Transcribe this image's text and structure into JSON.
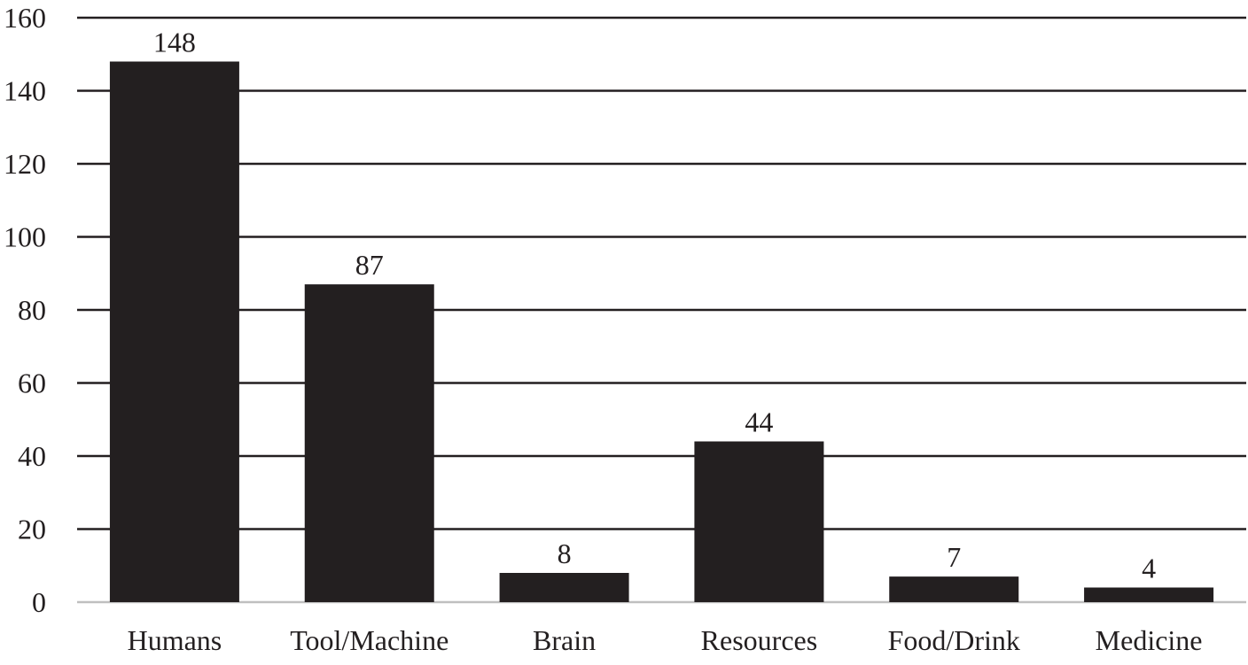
{
  "chart_data": {
    "type": "bar",
    "categories": [
      "Humans",
      "Tool/Machine",
      "Brain",
      "Resources",
      "Food/Drink",
      "Medicine"
    ],
    "values": [
      148,
      87,
      8,
      44,
      7,
      4
    ],
    "data_labels": [
      "148",
      "87",
      "8",
      "44",
      "7",
      "4"
    ],
    "title": "",
    "xlabel": "",
    "ylabel": "",
    "ylim": [
      0,
      160
    ],
    "y_ticks": [
      0,
      20,
      40,
      60,
      80,
      100,
      120,
      140,
      160
    ],
    "y_tick_labels": [
      "0",
      "20",
      "40",
      "60",
      "80",
      "100",
      "120",
      "140",
      "160"
    ],
    "grid": true,
    "legend": "none",
    "colors": {
      "bar": "#231f20",
      "grid": "#231f20",
      "baseline": "#bfbfbf",
      "text": "#231f20"
    }
  }
}
